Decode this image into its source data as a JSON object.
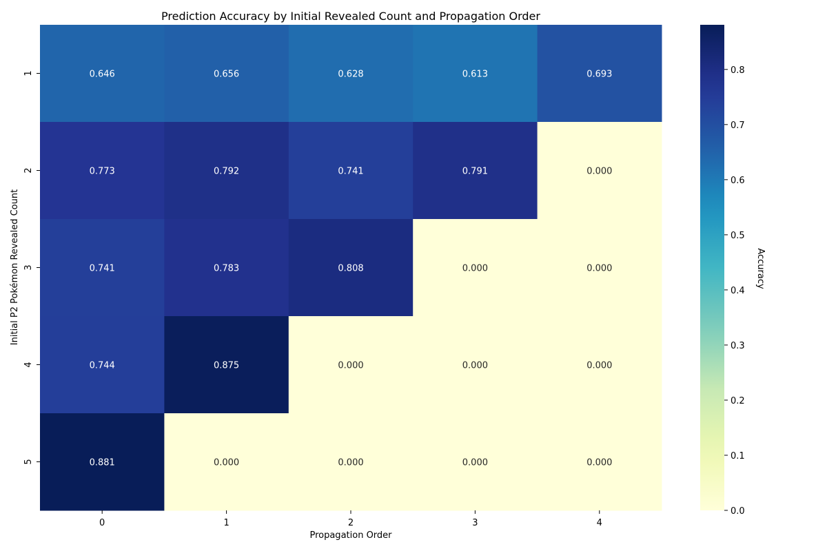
{
  "chart_data": {
    "type": "heatmap",
    "title": "Prediction Accuracy by Initial Revealed Count and Propagation Order",
    "xlabel": "Propagation Order",
    "ylabel": "Initial P2 Pokémon Revealed Count",
    "x_categories": [
      "0",
      "1",
      "2",
      "3",
      "4"
    ],
    "y_categories": [
      "1",
      "2",
      "3",
      "4",
      "5"
    ],
    "values": [
      [
        0.646,
        0.656,
        0.628,
        0.613,
        0.693
      ],
      [
        0.773,
        0.792,
        0.741,
        0.791,
        0.0
      ],
      [
        0.741,
        0.783,
        0.808,
        0.0,
        0.0
      ],
      [
        0.744,
        0.875,
        0.0,
        0.0,
        0.0
      ],
      [
        0.881,
        0.0,
        0.0,
        0.0,
        0.0
      ]
    ],
    "colorscale": "YlGnBu",
    "vmin": 0.0,
    "vmax": 0.881,
    "colorbar_label": "Accuracy",
    "colorbar_ticks": [
      "0.0",
      "0.1",
      "0.2",
      "0.3",
      "0.4",
      "0.5",
      "0.6",
      "0.7",
      "0.8"
    ],
    "grid": false,
    "legend": "colorbar-right"
  }
}
